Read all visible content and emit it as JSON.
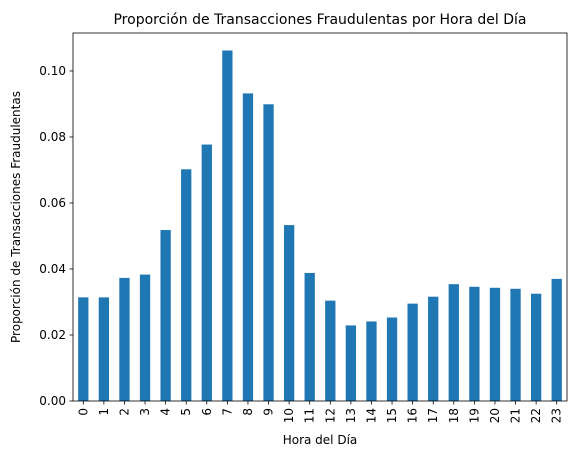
{
  "chart_data": {
    "type": "bar",
    "title": "Proporción de Transacciones Fraudulentas por Hora del Día",
    "xlabel": "Hora del Día",
    "ylabel": "Proporción de Transacciones Fraudulentas",
    "categories": [
      "0",
      "1",
      "2",
      "3",
      "4",
      "5",
      "6",
      "7",
      "8",
      "9",
      "10",
      "11",
      "12",
      "13",
      "14",
      "15",
      "16",
      "17",
      "18",
      "19",
      "20",
      "21",
      "22",
      "23"
    ],
    "values": [
      0.0314,
      0.0314,
      0.0373,
      0.0383,
      0.0518,
      0.0702,
      0.0777,
      0.1062,
      0.0932,
      0.0899,
      0.0533,
      0.0388,
      0.0304,
      0.0229,
      0.0241,
      0.0253,
      0.0295,
      0.0316,
      0.0354,
      0.0346,
      0.0343,
      0.034,
      0.0325,
      0.037
    ],
    "ylim": [
      0,
      0.1115
    ],
    "yticks": [
      0.0,
      0.02,
      0.04,
      0.06,
      0.08,
      0.1
    ],
    "ytick_labels": [
      "0.00",
      "0.02",
      "0.04",
      "0.06",
      "0.08",
      "0.10"
    ],
    "grid": false,
    "bar_color": "#1f77b4"
  }
}
